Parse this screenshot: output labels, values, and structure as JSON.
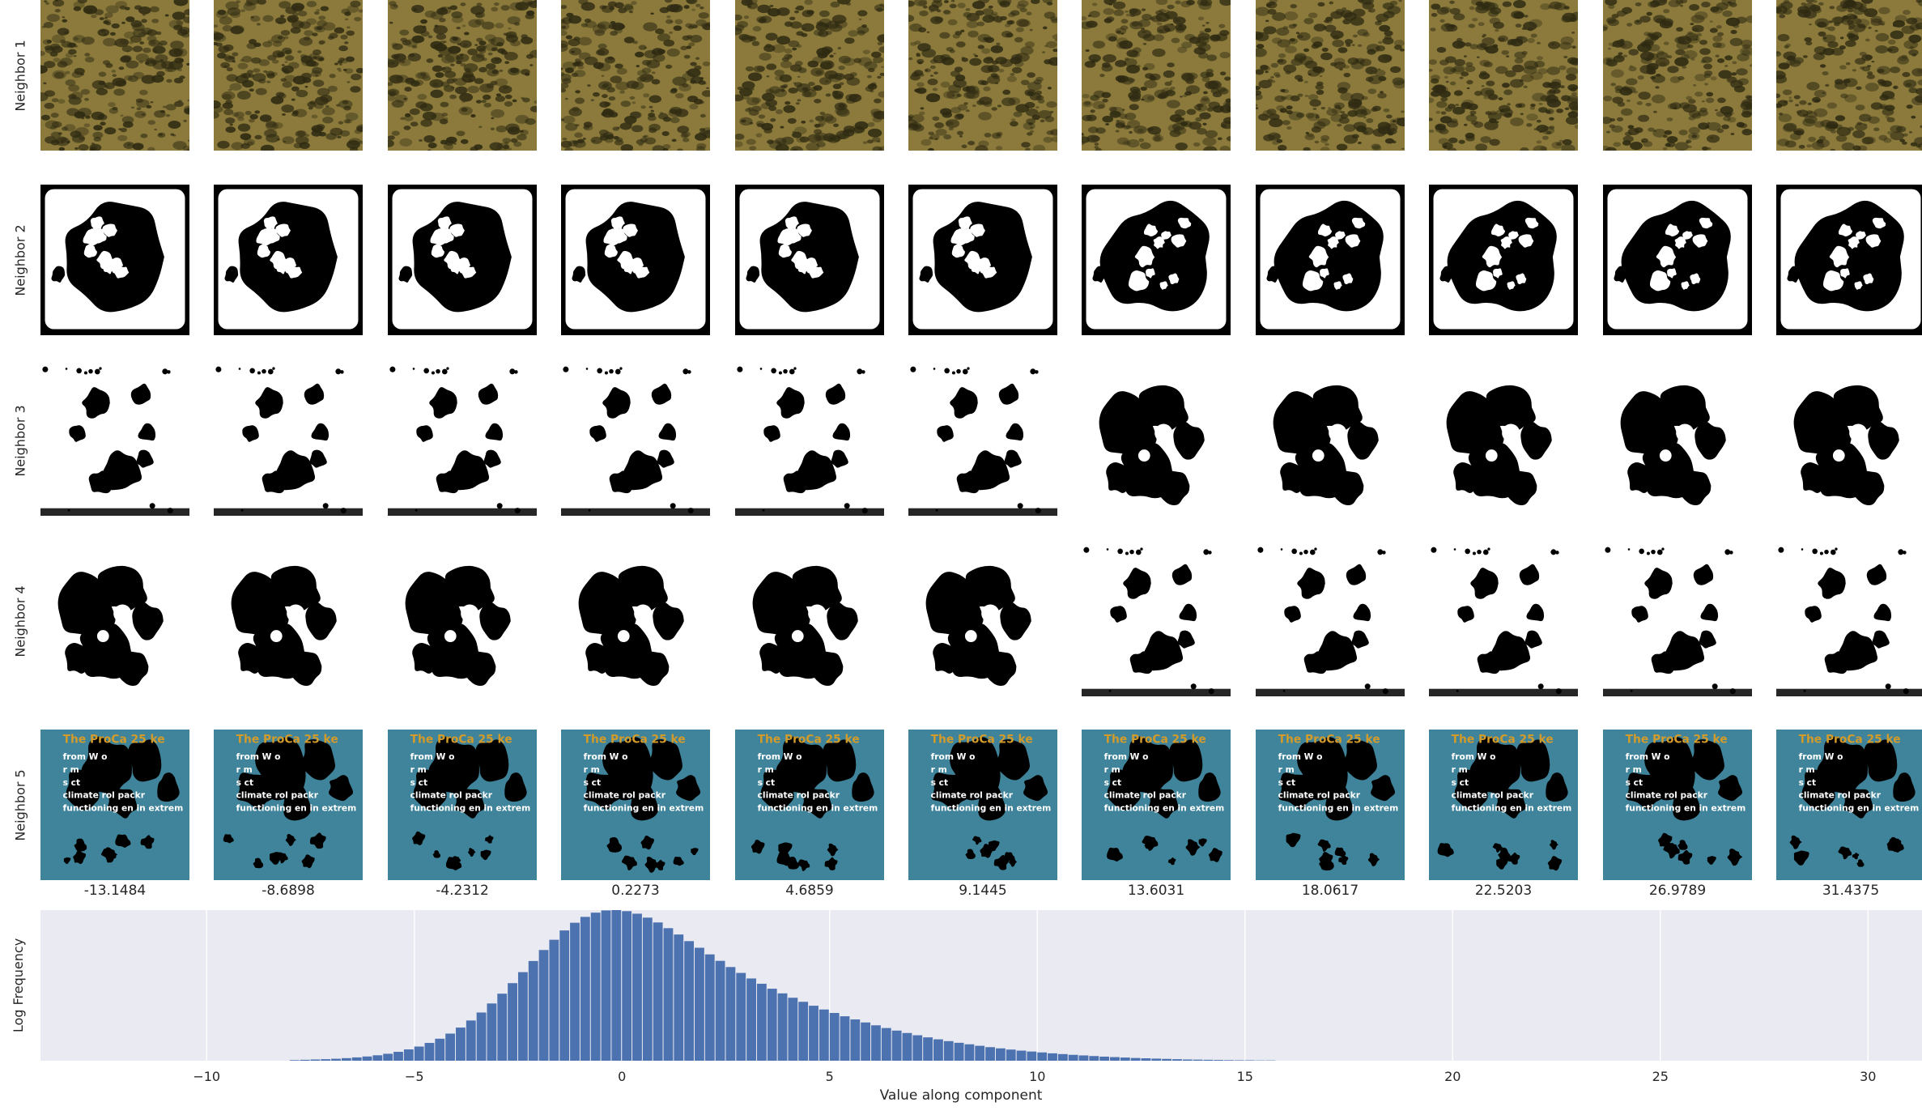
{
  "grid": {
    "row_labels": [
      "Neighbor 1",
      "Neighbor 2",
      "Neighbor 3",
      "Neighbor 4",
      "Neighbor 5"
    ],
    "column_values": [
      "-13.1484",
      "-8.6898",
      "-4.2312",
      "0.2273",
      "4.6859",
      "9.1445",
      "13.6031",
      "18.0617",
      "22.5203",
      "26.9789",
      "31.4375"
    ],
    "tile_kinds": [
      "texture",
      "blob-frame",
      "blob-a",
      "blob-b",
      "poster"
    ],
    "colors": {
      "texture_base": "#8b7a3c",
      "texture_dark": "#2e2a12",
      "poster_bg": "#3f849b",
      "poster_title": "#d39b2a",
      "mask_black": "#000000",
      "mask_white": "#ffffff"
    },
    "poster_text": {
      "title": "The ProCa   25   ke",
      "lines": [
        "from  W   o        ",
        "  r   m              ",
        "          s   ct",
        "climate    rol   packr",
        "functioning  en in extrem"
      ]
    }
  },
  "chart_data": {
    "type": "bar",
    "title": "",
    "xlabel": "Value along component",
    "ylabel": "Log Frequency",
    "xlim": [
      -14.0,
      31.3
    ],
    "xticks": [
      -10,
      -5,
      0,
      5,
      10,
      15,
      20,
      25,
      30
    ],
    "xtick_labels": [
      "−10",
      "−5",
      "0",
      "5",
      "10",
      "15",
      "20",
      "25",
      "30"
    ],
    "grid": true,
    "background": "#eaeaf2",
    "bar_color": "#4c72b0",
    "bin_width": 0.25,
    "bins_start": -8.0,
    "values": [
      0.4,
      0.6,
      0.8,
      1,
      1.3,
      1.7,
      2.2,
      2.8,
      3.6,
      4.6,
      5.9,
      7.5,
      9.4,
      11.8,
      14.6,
      18.0,
      22.0,
      26.7,
      32.0,
      38.0,
      44.5,
      51.5,
      58.8,
      66.2,
      73.5,
      80.3,
      86.5,
      91.6,
      95.5,
      98.3,
      99.8,
      100,
      99.3,
      97.6,
      95.0,
      91.8,
      88.0,
      83.8,
      79.4,
      75.0,
      70.6,
      66.3,
      62.2,
      58.3,
      54.6,
      51.1,
      47.8,
      44.7,
      41.8,
      39.1,
      36.5,
      34.0,
      31.7,
      29.5,
      27.4,
      25.4,
      23.5,
      21.7,
      20.0,
      18.4,
      16.9,
      15.5,
      14.2,
      13.0,
      11.9,
      10.9,
      9.9,
      9.0,
      8.2,
      7.4,
      6.7,
      6.1,
      5.5,
      4.9,
      4.4,
      3.9,
      3.5,
      3.1,
      2.7,
      2.4,
      2.1,
      1.8,
      1.6,
      1.4,
      1.2,
      1.0,
      0.8,
      0.7,
      0.6,
      0.5,
      0.4,
      0.3,
      0.3,
      0.2,
      0.2
    ]
  }
}
